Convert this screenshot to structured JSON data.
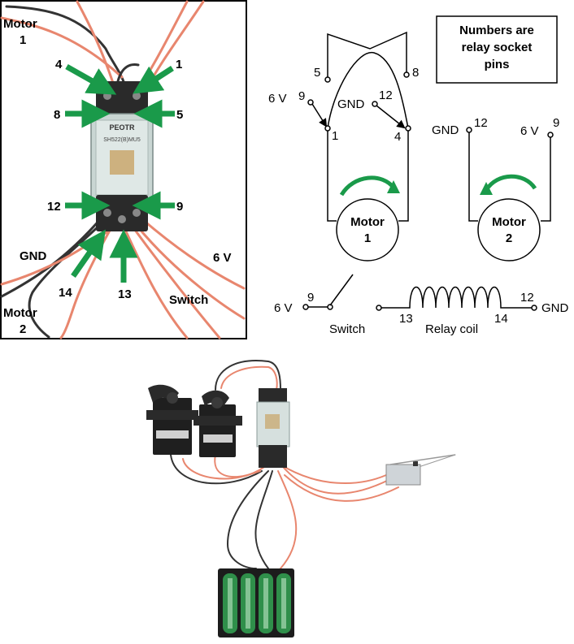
{
  "photo": {
    "labels": {
      "motor1": "Motor",
      "motor1_num": "1",
      "pin4": "4",
      "pin1": "1",
      "pin8": "8",
      "pin5": "5",
      "pin12": "12",
      "pin9": "9",
      "gnd": "GND",
      "v6": "6 V",
      "pin14": "14",
      "pin13": "13",
      "switch": "Switch",
      "motor2": "Motor",
      "motor2_num": "2"
    },
    "relay_print": {
      "brand": "PEOTR",
      "model": "SH522(B)MU5"
    }
  },
  "schematic": {
    "note_lines": [
      "Numbers are",
      "relay socket",
      "pins"
    ],
    "pin5": "5",
    "pin8": "8",
    "v6_left": "6 V",
    "pin9_left": "9",
    "gnd_left": "GND",
    "pin12_left": "12",
    "pin1": "1",
    "pin4": "4",
    "motor1_name": "Motor",
    "motor1_num": "1",
    "gnd_right": "GND",
    "pin12_right": "12",
    "v6_right": "6 V",
    "pin9_right": "9",
    "motor2_name": "Motor",
    "motor2_num": "2",
    "bottom": {
      "v6": "6 V",
      "pin9": "9",
      "switch": "Switch",
      "pin13": "13",
      "coil": "Relay coil",
      "pin14": "14",
      "pin12": "12",
      "gnd": "GND"
    }
  },
  "colors": {
    "arrow_green": "#1a9a4a",
    "wire_pink": "#e8866e",
    "wire_black": "#333333",
    "battery_green": "#2f8f4a"
  }
}
